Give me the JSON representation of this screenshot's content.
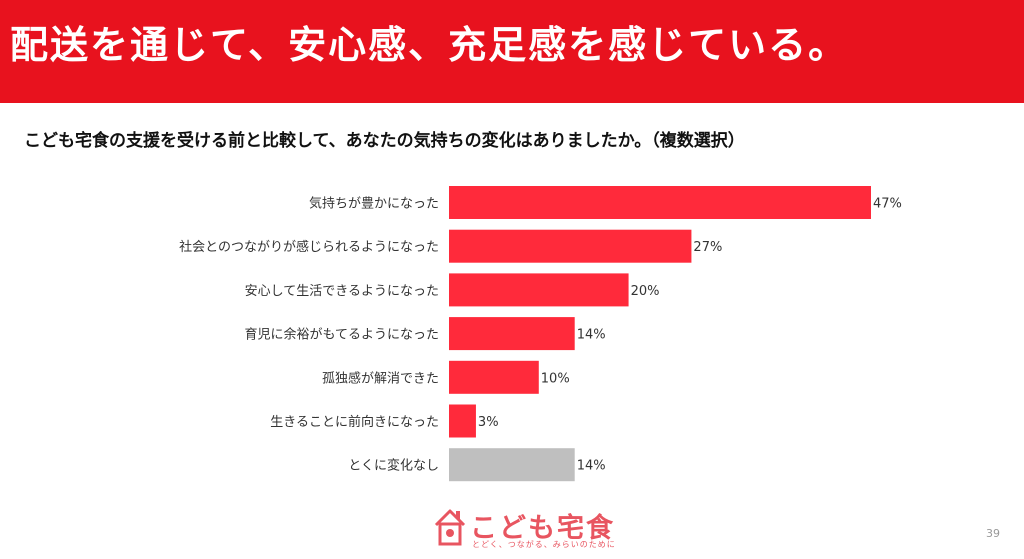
{
  "header": {
    "title": "配送を通じて、安心感、充足感を感じている。"
  },
  "question": "こども宅食の支援を受ける前と比較して、あなたの気持ちの変化はありましたか。（複数選択）",
  "colors": {
    "header_bg": "#e8121e",
    "bar_primary": "#ff2a3b",
    "bar_none": "#bfbfbf"
  },
  "chart_data": {
    "type": "bar",
    "orientation": "horizontal",
    "categories": [
      "気持ちが豊かになった",
      "社会とのつながりが感じられるようになった",
      "安心して生活できるようになった",
      "育児に余裕がもてるようになった",
      "孤独感が解消できた",
      "生きることに前向きになった",
      "とくに変化なし"
    ],
    "values": [
      47,
      27,
      20,
      14,
      10,
      3,
      14
    ],
    "value_labels": [
      "47%",
      "27%",
      "20%",
      "14%",
      "10%",
      "3%",
      "14%"
    ],
    "unit": "%",
    "xlim": [
      0,
      47
    ],
    "grid": false
  },
  "logo": {
    "text": "こども宅食",
    "tagline": "とどく、つながる、みらいのために"
  },
  "page_number": "39"
}
